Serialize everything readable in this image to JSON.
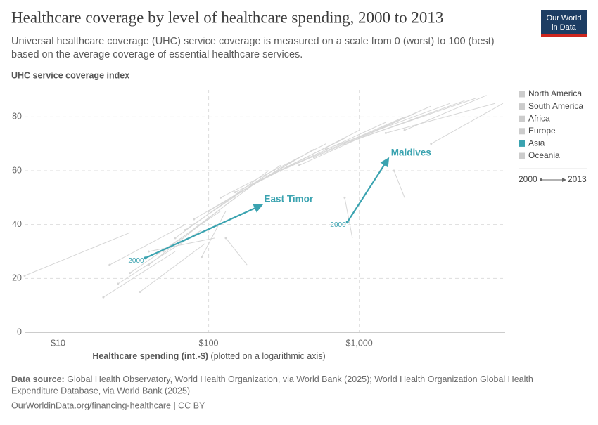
{
  "header": {
    "title": "Healthcare coverage by level of healthcare spending, 2000 to 2013",
    "subtitle_lines": [
      "Universal healthcare coverage (UHC) service coverage is measured on a scale from 0 (worst) to 100 (best)",
      "based on the average coverage of essential healthcare services."
    ],
    "logo_lines": [
      "Our World",
      "in Data"
    ]
  },
  "chart_data": {
    "type": "connected-scatter",
    "y_label": "UHC service coverage index",
    "x_label": "Healthcare spending (int.-$)",
    "x_label_note": "(plotted on a logarithmic axis)",
    "x_log": true,
    "xlim": [
      6,
      9300
    ],
    "xticks": [
      {
        "value": 10,
        "label": "$10"
      },
      {
        "value": 100,
        "label": "$100"
      },
      {
        "value": 1000,
        "label": "$1,000"
      }
    ],
    "ylim": [
      0,
      90
    ],
    "yticks": [
      0,
      20,
      40,
      60,
      80
    ],
    "grid": true,
    "series": [
      {
        "name": "East Timor",
        "color": "#3aa3b0",
        "x": [
          38,
          224
        ],
        "values": [
          27.6,
          47.2
        ],
        "start_label": "2000"
      },
      {
        "name": "Maldives",
        "color": "#3aa3b0",
        "x": [
          833,
          1556
        ],
        "values": [
          40.9,
          64.4
        ],
        "start_label": "2000"
      }
    ],
    "background_color": "#d6d6d6",
    "background_series": [
      {
        "x": [
          20,
          60
        ],
        "values": [
          13,
          30
        ]
      },
      {
        "x": [
          25,
          90
        ],
        "values": [
          18,
          38
        ]
      },
      {
        "x": [
          30,
          120
        ],
        "values": [
          22,
          45
        ]
      },
      {
        "x": [
          22,
          70
        ],
        "values": [
          25,
          40
        ]
      },
      {
        "x": [
          40,
          150
        ],
        "values": [
          25,
          50
        ]
      },
      {
        "x": [
          50,
          200
        ],
        "values": [
          30,
          55
        ]
      },
      {
        "x": [
          60,
          250
        ],
        "values": [
          35,
          60
        ]
      },
      {
        "x": [
          70,
          300
        ],
        "values": [
          38,
          62
        ]
      },
      {
        "x": [
          80,
          400
        ],
        "values": [
          42,
          65
        ]
      },
      {
        "x": [
          100,
          500
        ],
        "values": [
          45,
          68
        ]
      },
      {
        "x": [
          120,
          600
        ],
        "values": [
          50,
          70
        ]
      },
      {
        "x": [
          150,
          800
        ],
        "values": [
          52,
          72
        ]
      },
      {
        "x": [
          200,
          1000
        ],
        "values": [
          55,
          75
        ]
      },
      {
        "x": [
          250,
          1500
        ],
        "values": [
          58,
          78
        ]
      },
      {
        "x": [
          300,
          2000
        ],
        "values": [
          60,
          80
        ]
      },
      {
        "x": [
          400,
          2500
        ],
        "values": [
          62,
          82
        ]
      },
      {
        "x": [
          500,
          3000
        ],
        "values": [
          65,
          84
        ]
      },
      {
        "x": [
          600,
          4000
        ],
        "values": [
          68,
          85
        ]
      },
      {
        "x": [
          800,
          5000
        ],
        "values": [
          70,
          86
        ]
      },
      {
        "x": [
          1000,
          6000
        ],
        "values": [
          72,
          87
        ]
      },
      {
        "x": [
          1500,
          8000
        ],
        "values": [
          74,
          85
        ]
      },
      {
        "x": [
          2000,
          7000
        ],
        "values": [
          75,
          88
        ]
      },
      {
        "x": [
          40,
          110
        ],
        "values": [
          30,
          35
        ]
      },
      {
        "x": [
          90,
          130
        ],
        "values": [
          28,
          45
        ]
      },
      {
        "x": [
          6,
          30
        ],
        "values": [
          21,
          37
        ]
      },
      {
        "x": [
          35,
          95
        ],
        "values": [
          15,
          33
        ]
      },
      {
        "x": [
          130,
          180
        ],
        "values": [
          35,
          25
        ]
      },
      {
        "x": [
          1700,
          2000
        ],
        "values": [
          60,
          50
        ]
      },
      {
        "x": [
          800,
          900
        ],
        "values": [
          50,
          35
        ]
      },
      {
        "x": [
          3000,
          9000
        ],
        "values": [
          70,
          85
        ]
      }
    ],
    "legend": [
      {
        "name": "North America",
        "color": "#cccccc"
      },
      {
        "name": "South America",
        "color": "#cccccc"
      },
      {
        "name": "Africa",
        "color": "#cccccc"
      },
      {
        "name": "Europe",
        "color": "#cccccc"
      },
      {
        "name": "Asia",
        "color": "#3aa3b0"
      },
      {
        "name": "Oceania",
        "color": "#cccccc"
      }
    ],
    "time_legend": {
      "start": "2000",
      "end": "2013"
    }
  },
  "footer": {
    "source_label": "Data source:",
    "source_lines": [
      "Global Health Observatory, World Health Organization, via World Bank (2025); World Health Organization Global Health",
      "Expenditure Database, via World Bank (2025)"
    ],
    "url": "OurWorldinData.org/financing-healthcare | CC BY"
  }
}
